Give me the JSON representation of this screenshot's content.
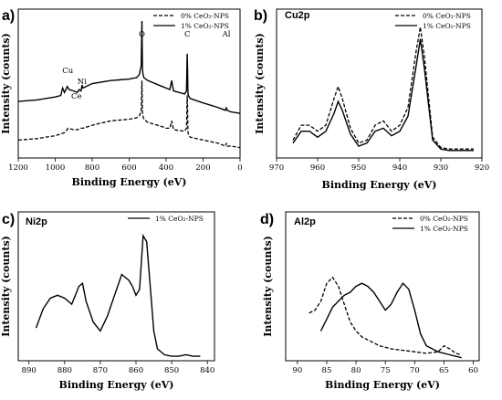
{
  "chart_data": [
    {
      "panel": "a)",
      "type": "line",
      "xlabel": "Binding Energy (eV)",
      "ylabel": "Intensity (counts)",
      "xlim": [
        1200,
        0
      ],
      "ylim": [
        0,
        100
      ],
      "xticks": [
        1200,
        1000,
        800,
        600,
        400,
        200,
        0
      ],
      "legend": {
        "position": "top-right",
        "entries": [
          {
            "label": "0% CeO₂-NPS",
            "style": "dashed"
          },
          {
            "label": "1% CeO₂-NPS",
            "style": "solid"
          }
        ]
      },
      "annotations": [
        {
          "text": "Cu",
          "x": 932
        },
        {
          "text": "Ce",
          "x": 885
        },
        {
          "text": "Ni",
          "x": 855
        },
        {
          "text": "O",
          "x": 531
        },
        {
          "text": "C",
          "x": 285
        },
        {
          "text": "Al",
          "x": 74
        }
      ],
      "series": [
        {
          "name": "1% CeO₂-NPS",
          "style": "solid",
          "x": [
            1200,
            1100,
            1000,
            970,
            960,
            950,
            935,
            925,
            900,
            880,
            870,
            860,
            855,
            850,
            800,
            700,
            600,
            560,
            545,
            535,
            531,
            528,
            525,
            520,
            500,
            420,
            400,
            380,
            370,
            360,
            300,
            290,
            286,
            284,
            282,
            280,
            270,
            200,
            120,
            100,
            80,
            76,
            74,
            70,
            50,
            0
          ],
          "y": [
            38,
            39,
            41,
            42,
            47,
            44,
            48,
            46,
            45,
            44,
            46,
            45,
            49,
            47,
            50,
            52,
            53,
            54,
            56,
            62,
            92,
            60,
            56,
            54,
            52,
            48,
            47,
            46,
            52,
            45,
            43,
            45,
            70,
            60,
            44,
            42,
            40,
            37,
            34,
            33,
            32,
            33,
            34,
            32,
            31,
            30
          ]
        },
        {
          "name": "0% CeO₂-NPS",
          "style": "dashed",
          "x": [
            1200,
            1100,
            1000,
            950,
            930,
            900,
            880,
            860,
            850,
            800,
            700,
            600,
            560,
            545,
            535,
            531,
            528,
            525,
            520,
            500,
            420,
            400,
            380,
            370,
            360,
            300,
            290,
            286,
            284,
            282,
            280,
            270,
            200,
            120,
            100,
            80,
            76,
            74,
            70,
            50,
            0
          ],
          "y": [
            12,
            13,
            15,
            17,
            20,
            19,
            19,
            20,
            20,
            22,
            25,
            26,
            27,
            28,
            32,
            52,
            30,
            28,
            26,
            24,
            21,
            20,
            20,
            25,
            19,
            18,
            20,
            42,
            34,
            18,
            16,
            14,
            12,
            10,
            9,
            8,
            9,
            10,
            8,
            8,
            7
          ]
        }
      ]
    },
    {
      "panel": "b)",
      "type": "line",
      "title": "Cu2p",
      "xlabel": "Binding Energy (eV)",
      "ylabel": "Intensity (counts)",
      "xlim": [
        970,
        920
      ],
      "ylim": [
        0,
        100
      ],
      "xticks": [
        970,
        960,
        950,
        940,
        930,
        920
      ],
      "legend": {
        "position": "top-right",
        "entries": [
          {
            "label": "0% CeO₂-NPS",
            "style": "dashed"
          },
          {
            "label": "1% CeO₂-NPS",
            "style": "solid"
          }
        ]
      },
      "series": [
        {
          "name": "1% CeO₂-NPS",
          "style": "solid",
          "x": [
            966,
            964,
            962,
            960,
            958,
            956,
            955,
            954,
            952,
            950,
            948,
            946,
            944,
            942,
            940,
            938,
            936,
            935,
            934,
            932,
            930,
            928,
            925,
            922
          ],
          "y": [
            10,
            18,
            18,
            14,
            18,
            30,
            38,
            32,
            16,
            8,
            10,
            18,
            20,
            15,
            18,
            28,
            62,
            80,
            60,
            12,
            6,
            5,
            5,
            5
          ]
        },
        {
          "name": "0% CeO₂-NPS",
          "style": "dashed",
          "x": [
            966,
            964,
            962,
            960,
            958,
            956,
            955,
            954,
            952,
            950,
            948,
            946,
            944,
            942,
            940,
            938,
            936,
            935,
            934,
            932,
            930,
            928,
            925,
            922
          ],
          "y": [
            12,
            22,
            22,
            18,
            22,
            40,
            48,
            40,
            20,
            10,
            12,
            22,
            25,
            18,
            22,
            34,
            72,
            88,
            68,
            14,
            7,
            6,
            6,
            6
          ]
        }
      ]
    },
    {
      "panel": "c)",
      "type": "line",
      "title": "Ni2p",
      "xlabel": "Binding Energy (eV)",
      "ylabel": "Intensity (counts)",
      "xlim": [
        893,
        838
      ],
      "ylim": [
        0,
        100
      ],
      "xticks": [
        890,
        880,
        870,
        860,
        850,
        840
      ],
      "legend": {
        "position": "top-right",
        "entries": [
          {
            "label": "1% CeO₂-NPS",
            "style": "solid"
          }
        ]
      },
      "series": [
        {
          "name": "1% CeO₂-NPS",
          "style": "solid",
          "x": [
            888,
            886,
            884,
            882,
            880,
            878,
            876,
            875,
            874,
            872,
            870,
            868,
            866,
            864,
            862,
            861,
            860,
            859,
            858,
            857,
            856,
            855,
            854,
            852,
            850,
            848,
            846,
            844,
            842
          ],
          "y": [
            22,
            35,
            42,
            44,
            42,
            38,
            50,
            52,
            40,
            26,
            20,
            30,
            44,
            58,
            54,
            50,
            44,
            48,
            84,
            80,
            50,
            20,
            8,
            4,
            3,
            3,
            4,
            3,
            3
          ]
        }
      ]
    },
    {
      "panel": "d)",
      "type": "line",
      "title": "Al2p",
      "xlabel": "Binding Energy (eV)",
      "ylabel": "Intensity (counts)",
      "xlim": [
        92,
        59
      ],
      "ylim": [
        0,
        100
      ],
      "xticks": [
        90,
        85,
        80,
        75,
        70,
        65,
        60
      ],
      "legend": {
        "position": "top-right",
        "entries": [
          {
            "label": "0% CeO₂-NPS",
            "style": "dashed"
          },
          {
            "label": "1% CeO₂-NPS",
            "style": "solid"
          }
        ]
      },
      "series": [
        {
          "name": "1% CeO₂-NPS",
          "style": "solid",
          "x": [
            86,
            85,
            84,
            83,
            82,
            81,
            80,
            79,
            78,
            77,
            76,
            75,
            74,
            73,
            72,
            71,
            70,
            69,
            68,
            66,
            64,
            62
          ],
          "y": [
            20,
            28,
            36,
            40,
            44,
            46,
            50,
            52,
            50,
            46,
            40,
            34,
            38,
            46,
            52,
            48,
            34,
            18,
            10,
            6,
            4,
            2
          ]
        },
        {
          "name": "0% CeO₂-NPS",
          "style": "dashed",
          "x": [
            88,
            87,
            86,
            85,
            84,
            83,
            82,
            81,
            80,
            79,
            78,
            77,
            76,
            75,
            74,
            72,
            70,
            68,
            66,
            65,
            64,
            63,
            62
          ],
          "y": [
            32,
            34,
            40,
            52,
            56,
            50,
            38,
            26,
            20,
            16,
            14,
            12,
            10,
            9,
            8,
            7,
            6,
            5,
            6,
            10,
            8,
            5,
            4
          ]
        }
      ]
    }
  ]
}
